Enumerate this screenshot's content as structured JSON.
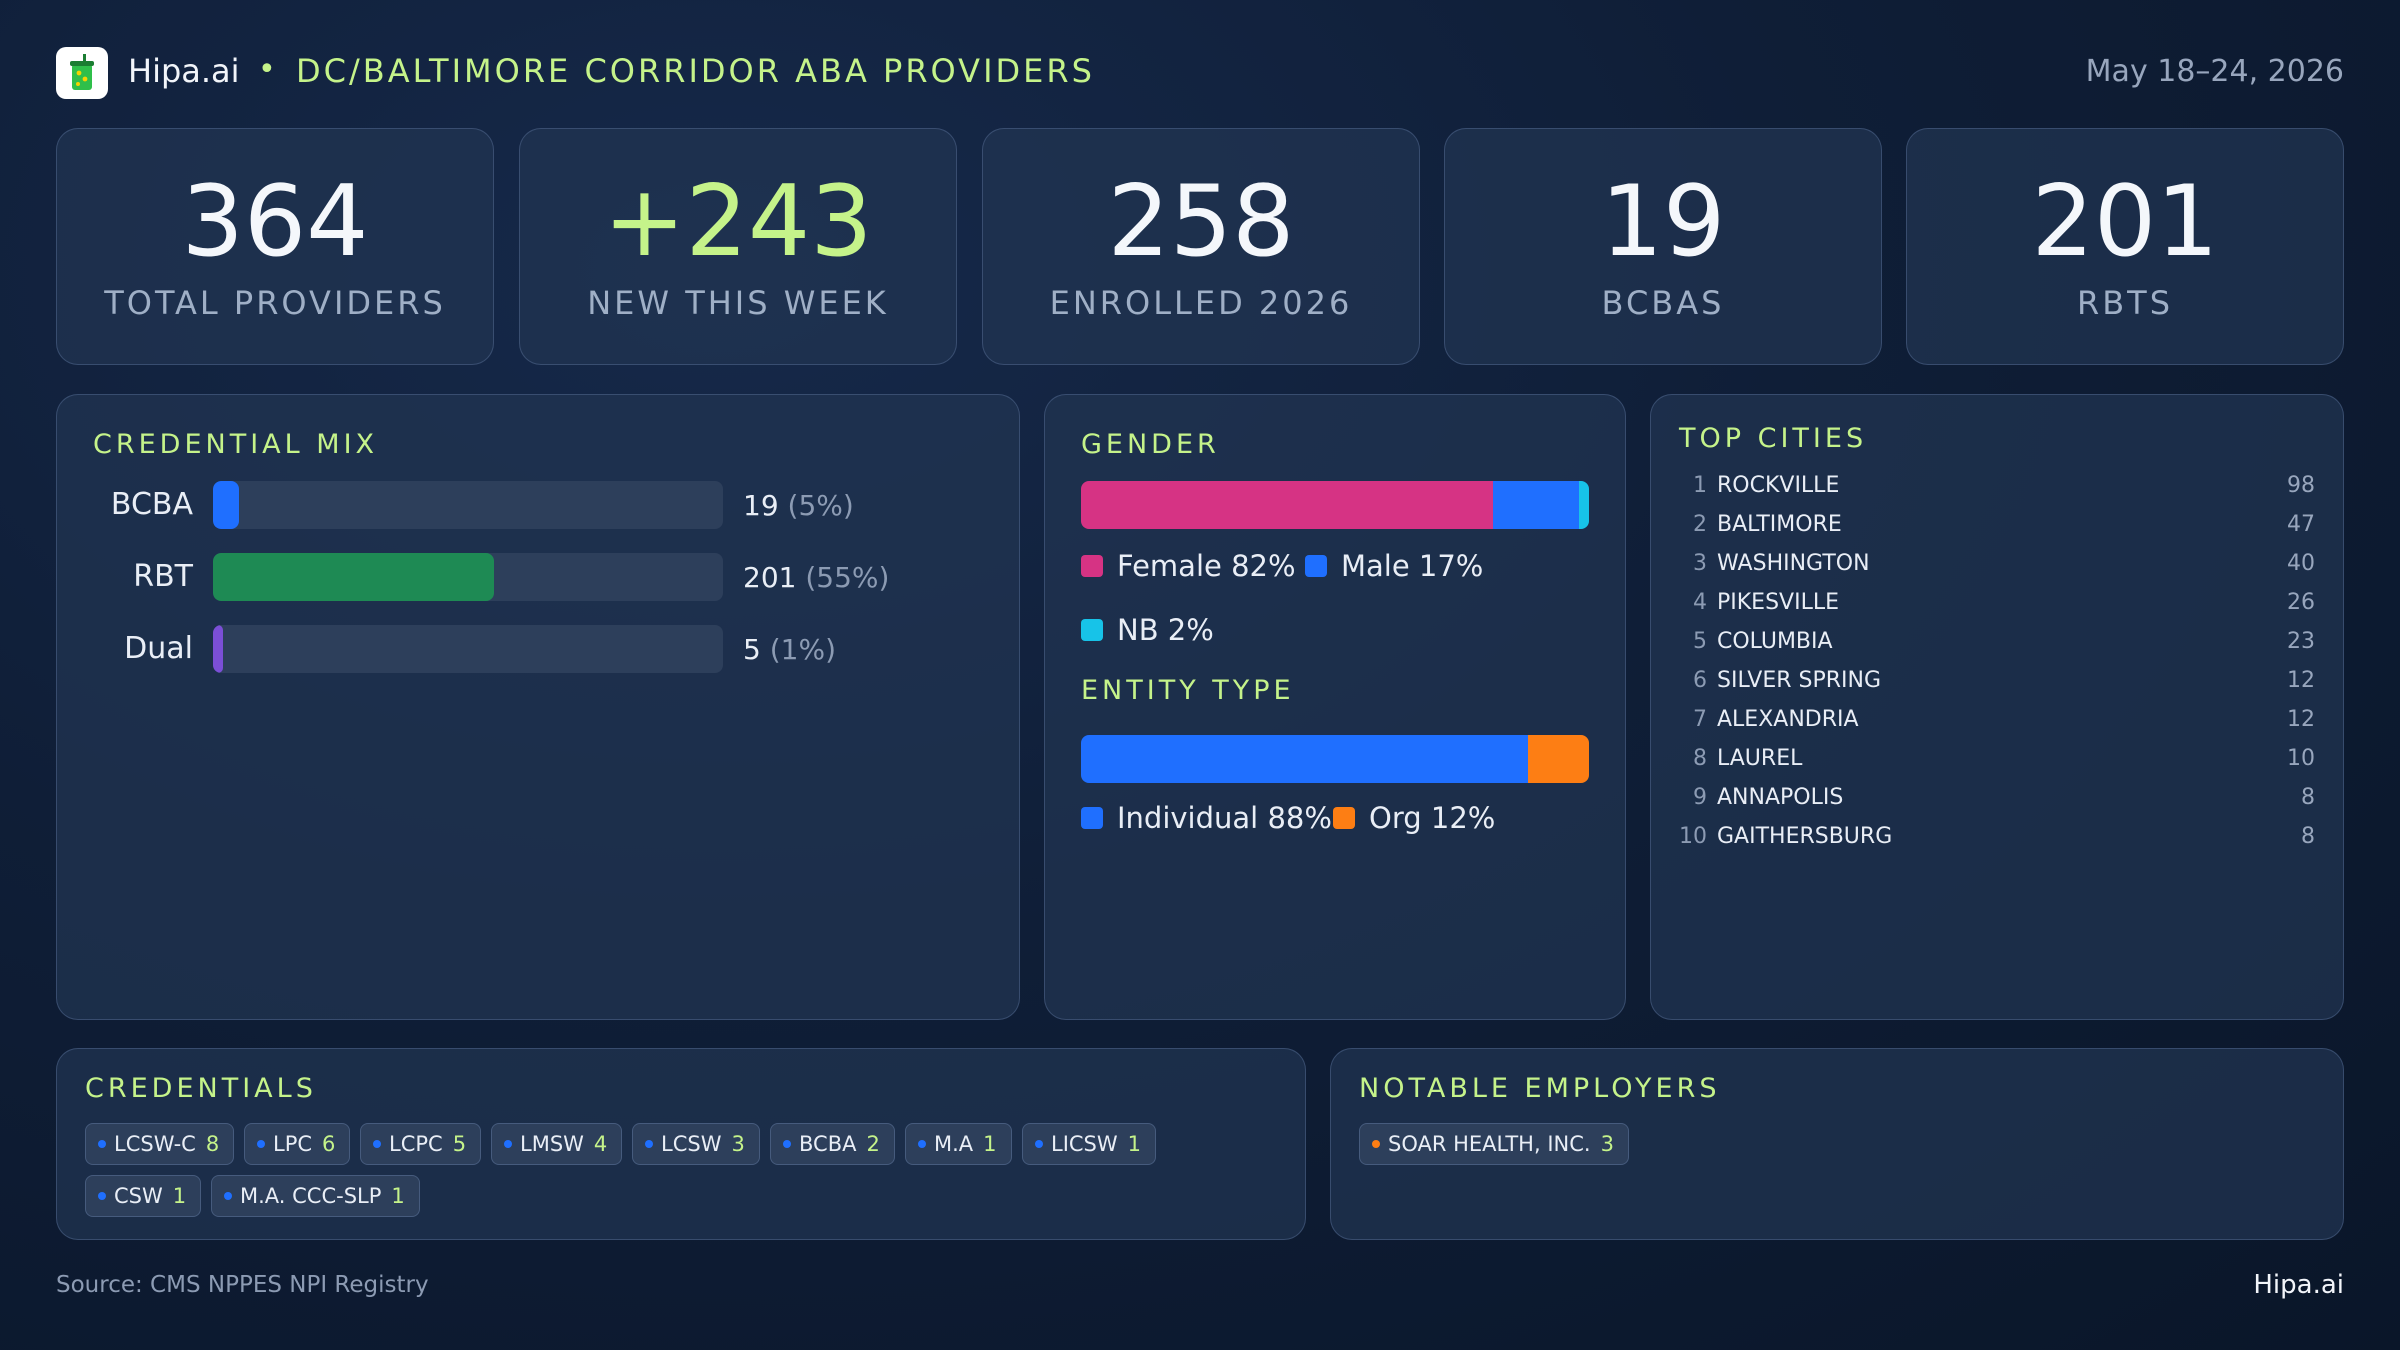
{
  "header": {
    "brand": "Hipa.ai",
    "separator": "•",
    "title": "DC/BALTIMORE CORRIDOR ABA PROVIDERS",
    "date_range": "May 18–24, 2026"
  },
  "kpis": [
    {
      "value": "364",
      "label": "TOTAL PROVIDERS"
    },
    {
      "value": "+243",
      "label": "NEW THIS WEEK"
    },
    {
      "value": "258",
      "label": "ENROLLED 2026"
    },
    {
      "value": "19",
      "label": "BCBAS"
    },
    {
      "value": "201",
      "label": "RBTS"
    }
  ],
  "credential_mix": {
    "title": "CREDENTIAL MIX",
    "rows": [
      {
        "label": "BCBA",
        "count": "19",
        "pct": "(5%)"
      },
      {
        "label": "RBT",
        "count": "201",
        "pct": "(55%)"
      },
      {
        "label": "Dual",
        "count": "5",
        "pct": "(1%)"
      }
    ]
  },
  "gender": {
    "title": "GENDER",
    "legend": [
      {
        "label": "Female 82%"
      },
      {
        "label": "Male 17%"
      },
      {
        "label": "NB 2%"
      }
    ]
  },
  "entity_type": {
    "title": "ENTITY TYPE",
    "legend": [
      {
        "label": "Individual 88%"
      },
      {
        "label": "Org 12%"
      }
    ]
  },
  "top_cities": {
    "title": "TOP CITIES",
    "rows": [
      {
        "rank": "1",
        "name": "ROCKVILLE",
        "count": "98"
      },
      {
        "rank": "2",
        "name": "BALTIMORE",
        "count": "47"
      },
      {
        "rank": "3",
        "name": "WASHINGTON",
        "count": "40"
      },
      {
        "rank": "4",
        "name": "PIKESVILLE",
        "count": "26"
      },
      {
        "rank": "5",
        "name": "COLUMBIA",
        "count": "23"
      },
      {
        "rank": "6",
        "name": "SILVER SPRING",
        "count": "12"
      },
      {
        "rank": "7",
        "name": "ALEXANDRIA",
        "count": "12"
      },
      {
        "rank": "8",
        "name": "LAUREL",
        "count": "10"
      },
      {
        "rank": "9",
        "name": "ANNAPOLIS",
        "count": "8"
      },
      {
        "rank": "10",
        "name": "GAITHERSBURG",
        "count": "8"
      }
    ]
  },
  "credentials": {
    "title": "CREDENTIALS",
    "chips": [
      {
        "label": "LCSW-C",
        "count": "8"
      },
      {
        "label": "LPC",
        "count": "6"
      },
      {
        "label": "LCPC",
        "count": "5"
      },
      {
        "label": "LMSW",
        "count": "4"
      },
      {
        "label": "LCSW",
        "count": "3"
      },
      {
        "label": "BCBA",
        "count": "2"
      },
      {
        "label": "M.A",
        "count": "1"
      },
      {
        "label": "LICSW",
        "count": "1"
      },
      {
        "label": "CSW",
        "count": "1"
      },
      {
        "label": "M.A. CCC-SLP",
        "count": "1"
      }
    ]
  },
  "notable_employers": {
    "title": "NOTABLE EMPLOYERS",
    "chips": [
      {
        "label": "SOAR HEALTH, INC.",
        "count": "3"
      }
    ]
  },
  "footer": {
    "source": "Source: CMS NPPES NPI Registry",
    "brand": "Hipa.ai"
  },
  "chart_data": [
    {
      "type": "bar",
      "title": "CREDENTIAL MIX",
      "categories": [
        "BCBA",
        "RBT",
        "Dual"
      ],
      "values": [
        19,
        201,
        5
      ],
      "fractions": [
        0.05,
        0.55,
        0.01
      ],
      "colors": [
        "#1f6fff",
        "#1e8a54",
        "#7b4fd6"
      ]
    },
    {
      "type": "bar",
      "title": "GENDER",
      "categories": [
        "Female",
        "Male",
        "NB"
      ],
      "values": [
        82,
        17,
        2
      ],
      "colors": [
        "#d63384",
        "#1f6fff",
        "#17c3e8"
      ]
    },
    {
      "type": "bar",
      "title": "ENTITY TYPE",
      "categories": [
        "Individual",
        "Org"
      ],
      "values": [
        88,
        12
      ],
      "colors": [
        "#1f6fff",
        "#fd7e14"
      ]
    }
  ],
  "colors": {
    "accent": "#c5f38a",
    "chip_dot_blue": "#1f6fff",
    "chip_dot_orange": "#fd7e14"
  },
  "icons": {
    "logo": "drink-cup-icon"
  }
}
